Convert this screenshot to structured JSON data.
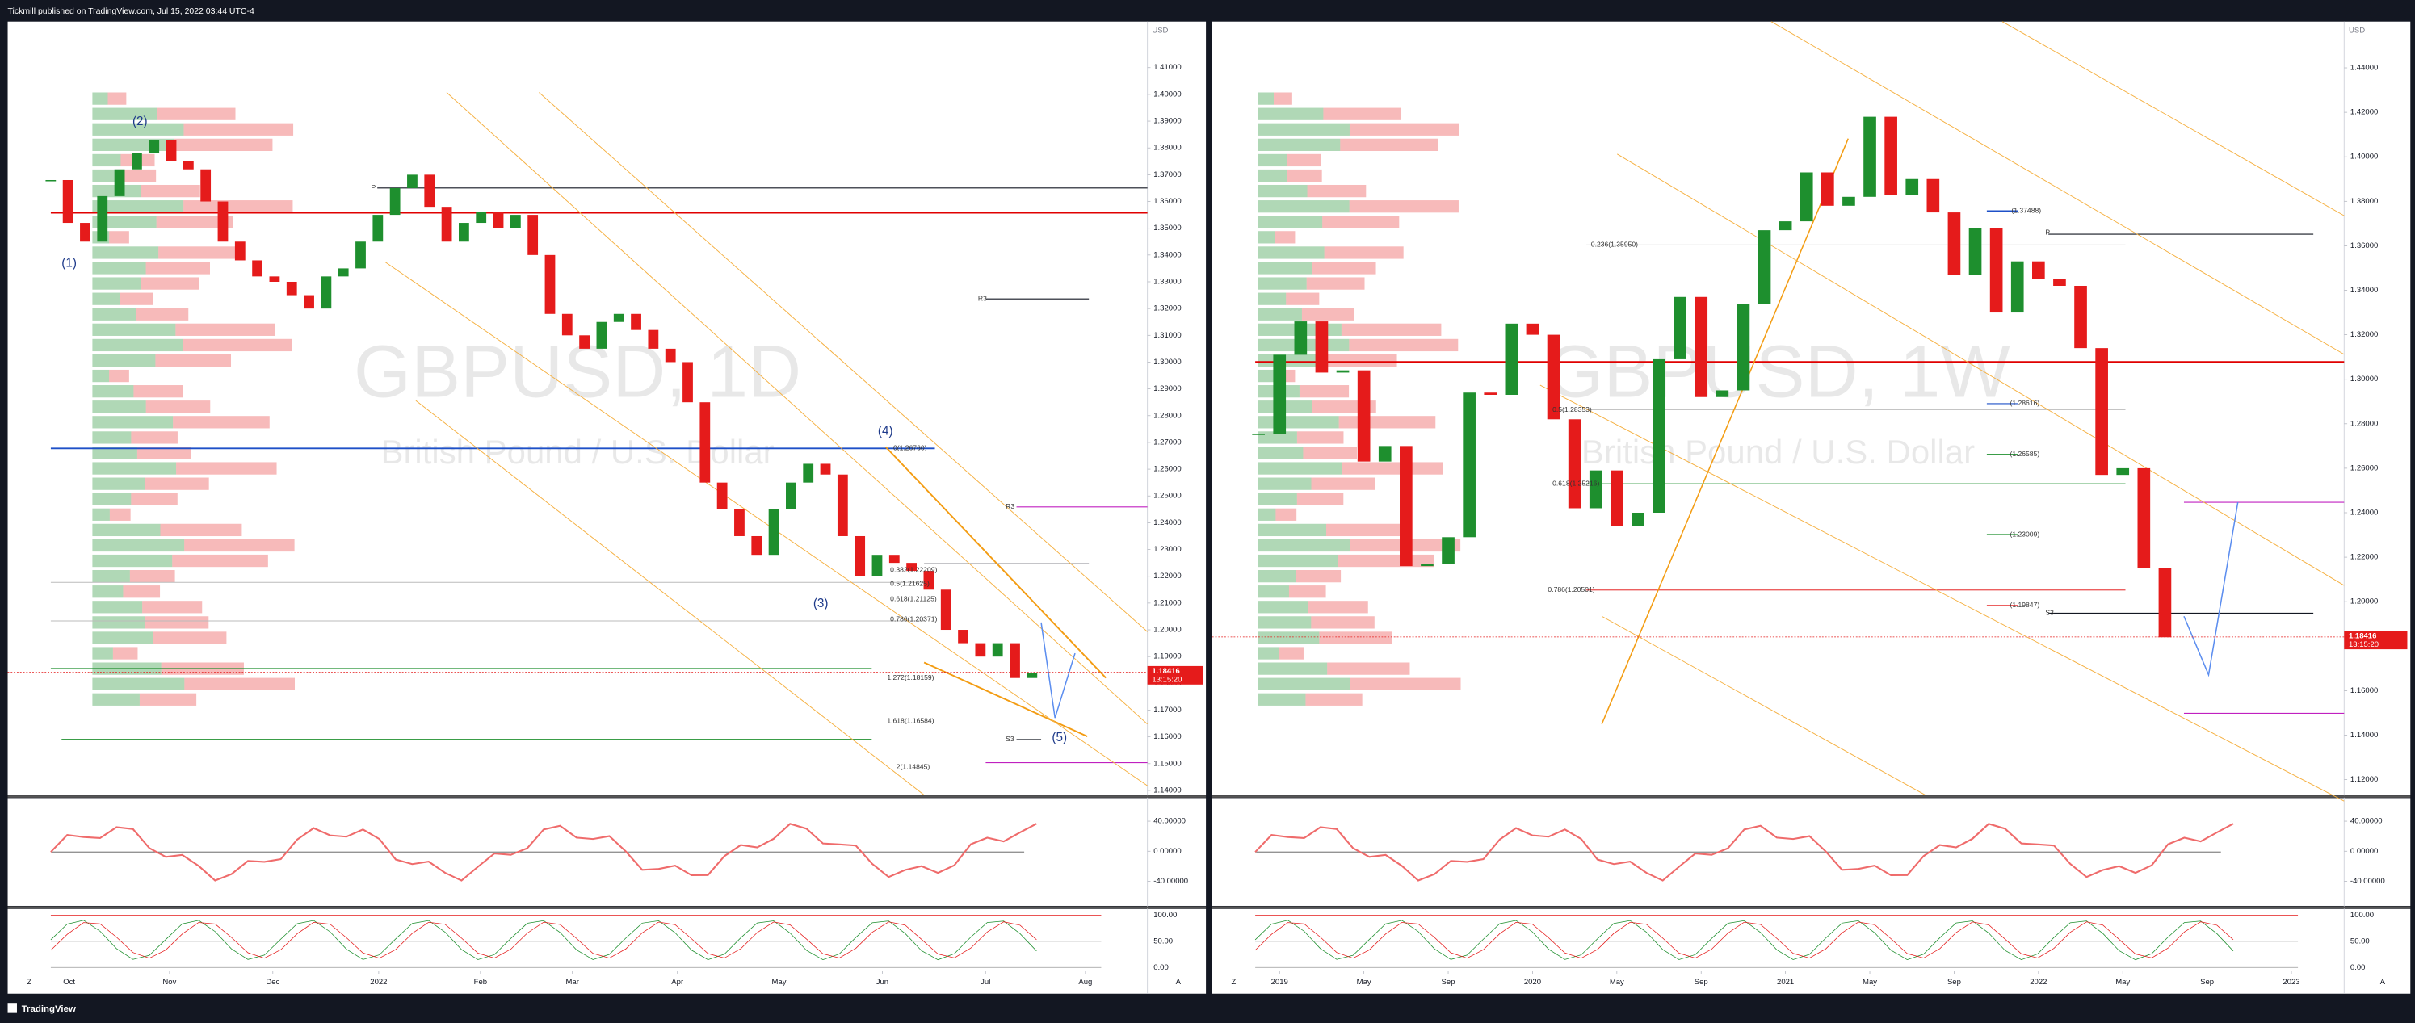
{
  "header": {
    "text": "Tickmill published on TradingView.com, Jul 15, 2022 03:44 UTC-4"
  },
  "footer": {
    "brand": "TradingView"
  },
  "controls": [
    "Z",
    "A"
  ],
  "chart_data": [
    {
      "type": "candlestick",
      "title": "GBPUSD, 1D",
      "subtitle": "British Pound / U.S. Dollar",
      "currency": "USD",
      "up_color": "#1e8f2e",
      "down_color": "#e51b1b",
      "values": [
        1.368,
        1.352,
        1.345,
        1.362,
        1.372,
        1.378,
        1.383,
        1.375,
        1.372,
        1.36,
        1.345,
        1.338,
        1.332,
        1.33,
        1.325,
        1.32,
        1.332,
        1.335,
        1.345,
        1.355,
        1.365,
        1.37,
        1.358,
        1.345,
        1.352,
        1.356,
        1.35,
        1.355,
        1.34,
        1.318,
        1.31,
        1.305,
        1.315,
        1.318,
        1.312,
        1.305,
        1.3,
        1.285,
        1.255,
        1.245,
        1.235,
        1.228,
        1.245,
        1.255,
        1.262,
        1.258,
        1.235,
        1.22,
        1.228,
        1.225,
        1.222,
        1.215,
        1.2,
        1.195,
        1.19,
        1.195,
        1.182,
        1.184
      ],
      "last_price": 1.18416,
      "countdown": "13:15:20",
      "ylim": [
        1.1383,
        1.4272
      ],
      "yticks": [
        {
          "value": 1.14,
          "label": "1.14000"
        },
        {
          "value": 1.15,
          "label": "1.15000"
        },
        {
          "value": 1.16,
          "label": "1.16000"
        },
        {
          "value": 1.17,
          "label": "1.17000"
        },
        {
          "value": 1.18,
          "label": "1.18000"
        },
        {
          "value": 1.19,
          "label": "1.19000"
        },
        {
          "value": 1.2,
          "label": "1.20000"
        },
        {
          "value": 1.21,
          "label": "1.21000"
        },
        {
          "value": 1.22,
          "label": "1.22000"
        },
        {
          "value": 1.23,
          "label": "1.23000"
        },
        {
          "value": 1.24,
          "label": "1.24000"
        },
        {
          "value": 1.25,
          "label": "1.25000"
        },
        {
          "value": 1.26,
          "label": "1.26000"
        },
        {
          "value": 1.27,
          "label": "1.27000"
        },
        {
          "value": 1.28,
          "label": "1.28000"
        },
        {
          "value": 1.29,
          "label": "1.29000"
        },
        {
          "value": 1.3,
          "label": "1.30000"
        },
        {
          "value": 1.31,
          "label": "1.31000"
        },
        {
          "value": 1.32,
          "label": "1.32000"
        },
        {
          "value": 1.33,
          "label": "1.33000"
        },
        {
          "value": 1.34,
          "label": "1.34000"
        },
        {
          "value": 1.35,
          "label": "1.35000"
        },
        {
          "value": 1.36,
          "label": "1.36000"
        },
        {
          "value": 1.37,
          "label": "1.37000"
        },
        {
          "value": 1.38,
          "label": "1.38000"
        },
        {
          "value": 1.39,
          "label": "1.39000"
        },
        {
          "value": 1.4,
          "label": "1.40000"
        },
        {
          "value": 1.41,
          "label": "1.41000"
        }
      ],
      "xlim": [
        -2.5,
        63.7
      ],
      "xticks": [
        {
          "value": 1.07,
          "label": "Oct"
        },
        {
          "value": 6.9,
          "label": "Nov"
        },
        {
          "value": 12.9,
          "label": "Dec"
        },
        {
          "value": 19.05,
          "label": "2022"
        },
        {
          "value": 24.96,
          "label": "Feb"
        },
        {
          "value": 30.3,
          "label": "Mar"
        },
        {
          "value": 36.4,
          "label": "Apr"
        },
        {
          "value": 42.3,
          "label": "May"
        },
        {
          "value": 48.3,
          "label": "Jun"
        },
        {
          "value": 54.3,
          "label": "Jul"
        },
        {
          "value": 60.1,
          "label": "Aug"
        }
      ],
      "rsi_lim": [
        -72.8,
        70.8
      ],
      "rsi_ticks": [
        {
          "value": 40,
          "label": "40.00000"
        },
        {
          "value": 0,
          "label": "0.00000"
        },
        {
          "value": -40,
          "label": "-40.00000"
        }
      ],
      "stoch_lim": [
        -5.9,
        111.8
      ],
      "stoch_ticks": [
        {
          "value": 100,
          "label": "100.00"
        },
        {
          "value": 50,
          "label": "50.00"
        },
        {
          "value": 0,
          "label": "0.00"
        }
      ],
      "annotations": [
        "(2)",
        "(1)",
        "(3)",
        "(4)",
        "(5)",
        "P",
        "R3",
        "R3",
        "S3",
        "0(1.26760)",
        "0.382(1.22209)",
        "0.5(1.21625)",
        "0.618(1.21125)",
        "0.786(1.20371)",
        "1.272(1.18159)",
        "1.618(1.16584)",
        "2(1.14845)"
      ]
    },
    {
      "type": "candlestick",
      "title": "GBPUSD, 1W",
      "subtitle": "British Pound / U.S. Dollar",
      "currency": "USD",
      "up_color": "#1e8f2e",
      "down_color": "#e51b1b",
      "values": [
        1.2755,
        1.311,
        1.326,
        1.303,
        1.304,
        1.263,
        1.27,
        1.216,
        1.217,
        1.229,
        1.294,
        1.293,
        1.325,
        1.32,
        1.282,
        1.242,
        1.259,
        1.234,
        1.24,
        1.309,
        1.337,
        1.292,
        1.295,
        1.334,
        1.367,
        1.371,
        1.393,
        1.378,
        1.382,
        1.418,
        1.383,
        1.39,
        1.375,
        1.347,
        1.368,
        1.33,
        1.353,
        1.345,
        1.342,
        1.314,
        1.257,
        1.26,
        1.215,
        1.184
      ],
      "last_price": 1.18416,
      "countdown": "13:15:20",
      "ylim": [
        1.1131,
        1.4608
      ],
      "yticks": [
        {
          "value": 1.12,
          "label": "1.12000"
        },
        {
          "value": 1.14,
          "label": "1.14000"
        },
        {
          "value": 1.16,
          "label": "1.16000"
        },
        {
          "value": 1.18,
          "label": "1.18000"
        },
        {
          "value": 1.2,
          "label": "1.20000"
        },
        {
          "value": 1.22,
          "label": "1.22000"
        },
        {
          "value": 1.24,
          "label": "1.24000"
        },
        {
          "value": 1.26,
          "label": "1.26000"
        },
        {
          "value": 1.28,
          "label": "1.28000"
        },
        {
          "value": 1.3,
          "label": "1.30000"
        },
        {
          "value": 1.32,
          "label": "1.32000"
        },
        {
          "value": 1.34,
          "label": "1.34000"
        },
        {
          "value": 1.36,
          "label": "1.36000"
        },
        {
          "value": 1.38,
          "label": "1.38000"
        },
        {
          "value": 1.4,
          "label": "1.40000"
        },
        {
          "value": 1.42,
          "label": "1.42000"
        },
        {
          "value": 1.44,
          "label": "1.44000"
        }
      ],
      "xlim": [
        -2.2,
        51.5
      ],
      "xticks": [
        {
          "value": 1,
          "label": "2019"
        },
        {
          "value": 5,
          "label": "May"
        },
        {
          "value": 9,
          "label": "Sep"
        },
        {
          "value": 13,
          "label": "2020"
        },
        {
          "value": 17,
          "label": "May"
        },
        {
          "value": 21,
          "label": "Sep"
        },
        {
          "value": 25,
          "label": "2021"
        },
        {
          "value": 29,
          "label": "May"
        },
        {
          "value": 33,
          "label": "Sep"
        },
        {
          "value": 37,
          "label": "2022"
        },
        {
          "value": 41,
          "label": "May"
        },
        {
          "value": 45,
          "label": "Sep"
        },
        {
          "value": 49,
          "label": "2023"
        }
      ],
      "rsi_lim": [
        -72.8,
        70.8
      ],
      "rsi_ticks": [
        {
          "value": 40,
          "label": "40.00000"
        },
        {
          "value": 0,
          "label": "0.00000"
        },
        {
          "value": -40,
          "label": "-40.00000"
        }
      ],
      "stoch_lim": [
        -5.9,
        111.8
      ],
      "stoch_ticks": [
        {
          "value": 100,
          "label": "100.00"
        },
        {
          "value": 50,
          "label": "50.00"
        },
        {
          "value": 0,
          "label": "0.00"
        }
      ],
      "annotations": [
        "0.236(1.35950)",
        "0.5(1.28353)",
        "0.618(1.25216)",
        "0.786(1.20501)",
        "(1.37488)",
        "(1.28616)",
        "(1.26585)",
        "(1.23009)",
        "(1.19847)",
        "P",
        "S3"
      ]
    }
  ]
}
